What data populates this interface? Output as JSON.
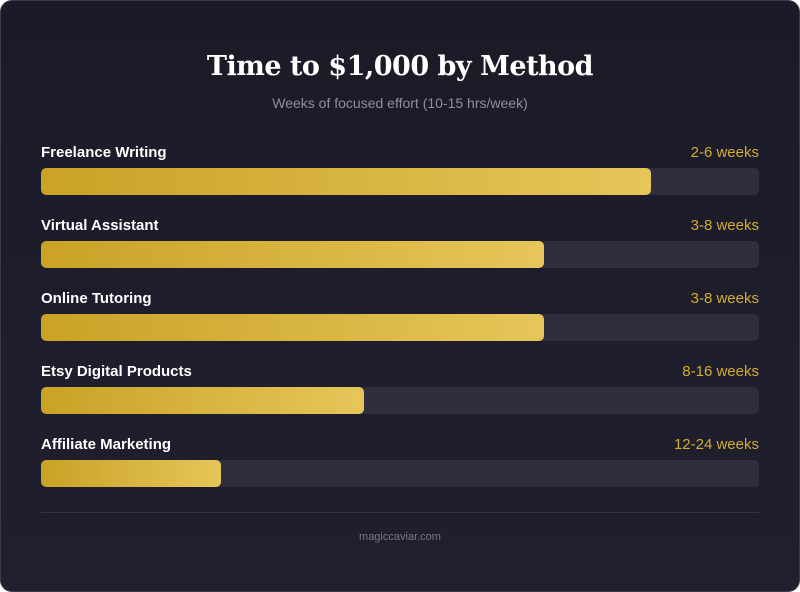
{
  "title": "Time to $1,000 by Method",
  "subtitle": "Weeks of focused effort (10-15 hrs/week)",
  "footer": "magiccaviar.com",
  "colors": {
    "background": "#1d1d2b",
    "track": "#2e2e3e",
    "fill_start": "#c9a226",
    "fill_end": "#e6c65a",
    "value_text": "#d4ac2e"
  },
  "chart_data": {
    "type": "bar",
    "orientation": "horizontal",
    "title": "Time to $1,000 by Method",
    "subtitle": "Weeks of focused effort (10-15 hrs/week)",
    "categories": [
      "Freelance Writing",
      "Virtual Assistant",
      "Online Tutoring",
      "Etsy Digital Products",
      "Affiliate Marketing"
    ],
    "value_labels": [
      "2-6 weeks",
      "3-8 weeks",
      "3-8 weeks",
      "8-16 weeks",
      "12-24 weeks"
    ],
    "values": [
      0.85,
      0.7,
      0.7,
      0.45,
      0.25
    ],
    "value_unit": "fraction of bar filled",
    "grid": false,
    "legend": "none"
  }
}
